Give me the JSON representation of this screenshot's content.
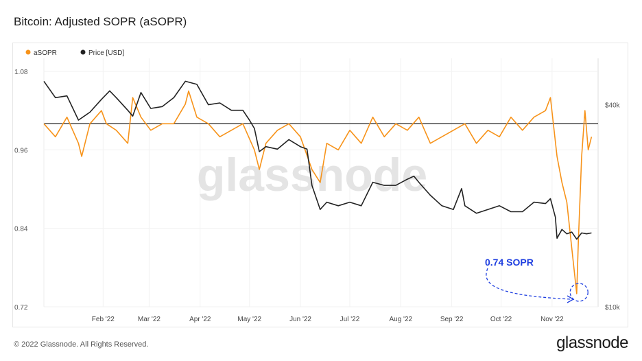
{
  "page": {
    "title": "Bitcoin: Adjusted SOPR (aSOPR)",
    "footer": "© 2022 Glassnode. All Rights Reserved.",
    "brand": "glassnode",
    "watermark": "glassnode"
  },
  "chart_data": {
    "type": "line",
    "x_ticks": [
      "Feb '22",
      "Mar '22",
      "Apr '22",
      "May '22",
      "Jun '22",
      "Jul '22",
      "Aug '22",
      "Sep '22",
      "Oct '22",
      "Nov '22"
    ],
    "y_left_ticks": [
      "1.08",
      "0.96",
      "0.84",
      "0.72"
    ],
    "y_left_range": [
      0.72,
      1.1
    ],
    "y_right_ticks": [
      "$40k",
      "$10k"
    ],
    "y_right_scale": "log",
    "legend": [
      {
        "name": "aSOPR",
        "color": "#f7931a"
      },
      {
        "name": "Price [USD]",
        "color": "#222222"
      }
    ],
    "reference_line": 1.0,
    "annotation": {
      "text": "0.74 SOPR",
      "color": "#1f3fe0",
      "value": 0.74,
      "date": "Nov 22 '22"
    },
    "series": [
      {
        "name": "aSOPR",
        "color": "#f7931a",
        "dates": [
          "2022-01-01",
          "2022-01-08",
          "2022-01-15",
          "2022-01-22",
          "2022-01-24",
          "2022-01-29",
          "2022-02-05",
          "2022-02-08",
          "2022-02-14",
          "2022-02-21",
          "2022-02-24",
          "2022-03-01",
          "2022-03-07",
          "2022-03-14",
          "2022-03-21",
          "2022-03-28",
          "2022-03-30",
          "2022-04-04",
          "2022-04-11",
          "2022-04-18",
          "2022-04-25",
          "2022-05-02",
          "2022-05-09",
          "2022-05-12",
          "2022-05-16",
          "2022-05-23",
          "2022-05-30",
          "2022-06-06",
          "2022-06-13",
          "2022-06-18",
          "2022-06-22",
          "2022-06-29",
          "2022-07-06",
          "2022-07-13",
          "2022-07-20",
          "2022-07-27",
          "2022-08-03",
          "2022-08-10",
          "2022-08-17",
          "2022-08-24",
          "2022-08-31",
          "2022-09-07",
          "2022-09-14",
          "2022-09-21",
          "2022-09-28",
          "2022-10-05",
          "2022-10-12",
          "2022-10-19",
          "2022-10-26",
          "2022-11-02",
          "2022-11-05",
          "2022-11-09",
          "2022-11-12",
          "2022-11-15",
          "2022-11-18",
          "2022-11-21",
          "2022-11-22",
          "2022-11-24",
          "2022-11-26",
          "2022-11-28",
          "2022-11-30"
        ],
        "values": [
          1.0,
          0.98,
          1.01,
          0.97,
          0.95,
          1.0,
          1.02,
          1.0,
          0.99,
          0.97,
          1.04,
          1.01,
          0.99,
          1.0,
          1.0,
          1.03,
          1.05,
          1.01,
          1.0,
          0.98,
          0.99,
          1.0,
          0.96,
          0.93,
          0.97,
          0.99,
          1.0,
          0.98,
          0.93,
          0.91,
          0.97,
          0.96,
          0.99,
          0.97,
          1.01,
          0.98,
          1.0,
          0.99,
          1.01,
          0.97,
          0.98,
          0.99,
          1.0,
          0.97,
          0.99,
          0.98,
          1.01,
          0.99,
          1.01,
          1.02,
          1.04,
          0.95,
          0.91,
          0.88,
          0.81,
          0.74,
          0.82,
          0.95,
          1.02,
          0.96,
          0.98
        ]
      },
      {
        "name": "Price [USD]",
        "color": "#222222",
        "dates": [
          "2022-01-01",
          "2022-01-08",
          "2022-01-15",
          "2022-01-22",
          "2022-01-29",
          "2022-02-05",
          "2022-02-10",
          "2022-02-14",
          "2022-02-21",
          "2022-02-24",
          "2022-03-01",
          "2022-03-07",
          "2022-03-14",
          "2022-03-21",
          "2022-03-28",
          "2022-04-04",
          "2022-04-11",
          "2022-04-18",
          "2022-04-25",
          "2022-05-02",
          "2022-05-06",
          "2022-05-09",
          "2022-05-12",
          "2022-05-16",
          "2022-05-23",
          "2022-05-30",
          "2022-06-06",
          "2022-06-10",
          "2022-06-13",
          "2022-06-18",
          "2022-06-22",
          "2022-06-29",
          "2022-07-06",
          "2022-07-13",
          "2022-07-20",
          "2022-07-27",
          "2022-08-03",
          "2022-08-10",
          "2022-08-14",
          "2022-08-17",
          "2022-08-24",
          "2022-08-31",
          "2022-09-07",
          "2022-09-12",
          "2022-09-14",
          "2022-09-21",
          "2022-09-28",
          "2022-10-05",
          "2022-10-12",
          "2022-10-19",
          "2022-10-26",
          "2022-11-02",
          "2022-11-05",
          "2022-11-08",
          "2022-11-09",
          "2022-11-12",
          "2022-11-15",
          "2022-11-18",
          "2022-11-21",
          "2022-11-24",
          "2022-11-27",
          "2022-11-30"
        ],
        "values": [
          47000,
          42000,
          42500,
          36000,
          38000,
          41500,
          44000,
          42000,
          38500,
          37000,
          43500,
          39000,
          39500,
          42000,
          47000,
          46000,
          40000,
          40500,
          38500,
          38500,
          36000,
          34000,
          29000,
          30000,
          29500,
          31500,
          30000,
          29500,
          23000,
          19500,
          20500,
          20000,
          20500,
          20000,
          23500,
          23000,
          23000,
          24000,
          24500,
          23500,
          21500,
          20000,
          19500,
          22500,
          20000,
          19000,
          19500,
          20000,
          19200,
          19200,
          20500,
          20300,
          21000,
          18500,
          16000,
          17000,
          16500,
          16700,
          15900,
          16600,
          16500,
          16600
        ]
      }
    ]
  }
}
